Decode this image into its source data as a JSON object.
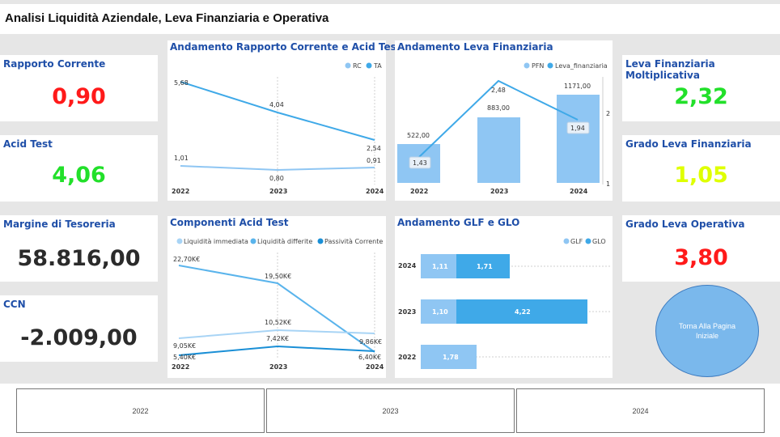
{
  "header": {
    "title": "Analisi Liquidità Aziendale, Leva Finanziaria e Operativa"
  },
  "kpis": {
    "rapporto_corrente": {
      "label": "Rapporto Corrente",
      "value": "0,90",
      "color": "#ff1a1a"
    },
    "acid_test": {
      "label": "Acid Test",
      "value": "4,06",
      "color": "#22e02a"
    },
    "margine_tesoreria": {
      "label": "Margine di Tesoreria",
      "value": "58.816,00",
      "color": "#2b2b2b"
    },
    "ccn": {
      "label": "CCN",
      "value": "-2.009,00",
      "color": "#2b2b2b"
    },
    "leva_moltiplicativa": {
      "label": "Leva Finanziaria Moltiplicativa",
      "value": "2,32",
      "color": "#22e02a"
    },
    "grado_leva_finanziaria": {
      "label": "Grado Leva Finanziaria",
      "value": "1,05",
      "color": "#dfff00"
    },
    "grado_leva_operativa": {
      "label": "Grado Leva Operativa",
      "value": "3,80",
      "color": "#ff1a1a"
    }
  },
  "charts": {
    "rc_ta": {
      "title": "Andamento Rapporto Corrente e Acid Test",
      "legend": [
        "RC",
        "TA"
      ],
      "x": [
        "2022",
        "2023",
        "2024"
      ],
      "rc_labels": [
        "1,01",
        "0,80",
        "0,91"
      ],
      "ta_labels": [
        "5,68",
        "4,04",
        "2,54"
      ]
    },
    "leva": {
      "title": "Andamento Leva Finanziaria",
      "legend": [
        "PFN",
        "Leva_finanziaria"
      ],
      "x": [
        "2022",
        "2023",
        "2024"
      ],
      "pfn_labels": [
        "522,00",
        "883,00",
        "1171,00"
      ],
      "leva_labels": [
        "1,43",
        "2,48",
        "1,94"
      ],
      "right_axis": [
        "2",
        "1"
      ]
    },
    "acid_components": {
      "title": "Componenti Acid Test",
      "legend": [
        "Liquidità immediata",
        "Liquidità differite",
        "Passività Corrente"
      ],
      "x": [
        "2022",
        "2023",
        "2024"
      ],
      "immediata_labels": [
        "22,70K€",
        "19,50K€",
        "6,40K€"
      ],
      "differite_labels": [
        "9,05K€",
        "10,52K€",
        "9,86K€"
      ],
      "passivita_labels": [
        "5,40K€",
        "7,42K€",
        "6,40K€"
      ]
    },
    "glf_glo": {
      "title": "Andamento GLF e GLO",
      "legend": [
        "GLF",
        "GLO"
      ],
      "years": [
        "2024",
        "2023",
        "2022"
      ],
      "glf_labels": [
        "1,11",
        "1,10",
        "1,78"
      ],
      "glo_labels": [
        "1,71",
        "4,22",
        ""
      ]
    }
  },
  "chart_data": [
    {
      "type": "line",
      "title": "Andamento Rapporto Corrente e Acid Test",
      "x": [
        "2022",
        "2023",
        "2024"
      ],
      "series": [
        {
          "name": "RC",
          "values": [
            1.01,
            0.8,
            0.91
          ]
        },
        {
          "name": "TA",
          "values": [
            5.68,
            4.04,
            2.54
          ]
        }
      ]
    },
    {
      "type": "bar",
      "title": "Andamento Leva Finanziaria",
      "categories": [
        "2022",
        "2023",
        "2024"
      ],
      "series": [
        {
          "name": "PFN",
          "values": [
            522.0,
            883.0,
            1171.0
          ]
        },
        {
          "name": "Leva_finanziaria",
          "values": [
            1.43,
            2.48,
            1.94
          ]
        }
      ]
    },
    {
      "type": "line",
      "title": "Componenti Acid Test",
      "x": [
        "2022",
        "2023",
        "2024"
      ],
      "series": [
        {
          "name": "Liquidità immediata",
          "values": [
            22.7,
            19.5,
            6.4
          ]
        },
        {
          "name": "Liquidità differite",
          "values": [
            9.05,
            10.52,
            9.86
          ]
        },
        {
          "name": "Passività Corrente",
          "values": [
            5.4,
            7.42,
            6.4
          ]
        }
      ]
    },
    {
      "type": "bar",
      "title": "Andamento GLF e GLO",
      "categories": [
        "2024",
        "2023",
        "2022"
      ],
      "series": [
        {
          "name": "GLF",
          "values": [
            1.11,
            1.1,
            1.78
          ]
        },
        {
          "name": "GLO",
          "values": [
            1.71,
            4.22,
            0
          ]
        }
      ]
    }
  ],
  "nav": {
    "back_button": "Torna Alla Pagina Iniziale"
  },
  "slicer": {
    "years": [
      "2022",
      "2023",
      "2024"
    ]
  }
}
